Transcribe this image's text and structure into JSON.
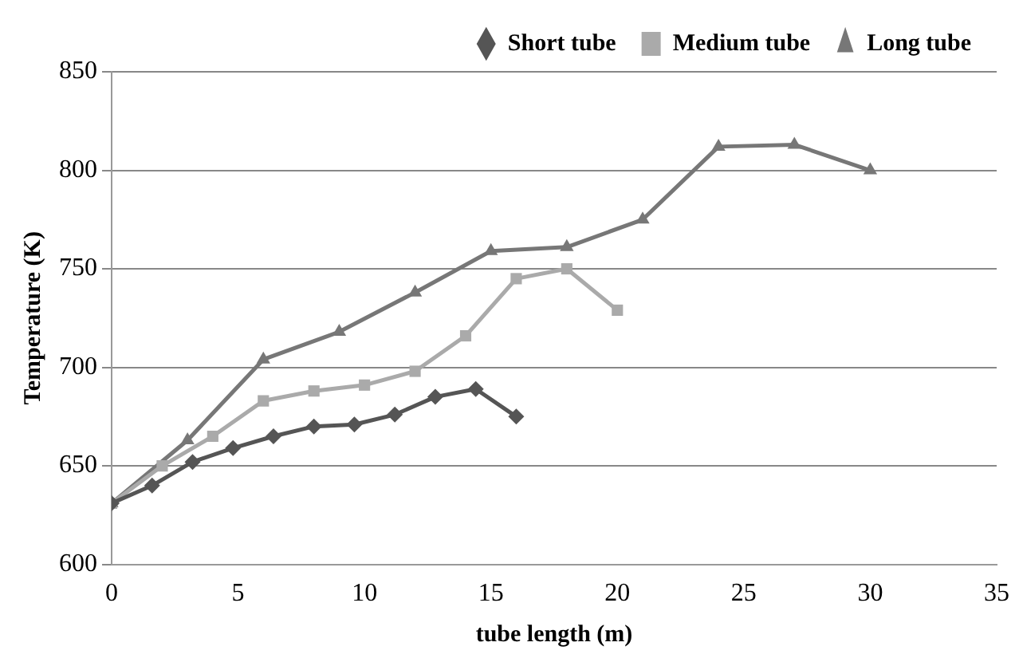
{
  "chart_data": {
    "type": "line",
    "xlabel": "tube length (m)",
    "ylabel": "Temperature (K)",
    "xlim": [
      0,
      35
    ],
    "xticks": [
      0,
      5,
      10,
      15,
      20,
      25,
      30,
      35
    ],
    "ylim": [
      600,
      850
    ],
    "yticks": [
      600,
      650,
      700,
      750,
      800,
      850
    ],
    "grid": "y",
    "legend": "top right",
    "line_style": "solid",
    "series": [
      {
        "name": "Short tube",
        "color": "#555555",
        "marker": "diamond",
        "x": [
          0,
          1.6,
          3.2,
          4.8,
          6.4,
          8,
          9.6,
          11.2,
          12.8,
          14.4,
          16
        ],
        "values": [
          631,
          640,
          652,
          659,
          665,
          670,
          671,
          676,
          685,
          689,
          675
        ]
      },
      {
        "name": "Medium tube",
        "color": "#aaaaaa",
        "marker": "square",
        "x": [
          0,
          2,
          4,
          6,
          8,
          10,
          12,
          14,
          16,
          18,
          20
        ],
        "values": [
          631,
          650,
          665,
          683,
          688,
          691,
          698,
          716,
          745,
          750,
          729
        ]
      },
      {
        "name": "Long tube",
        "color": "#777777",
        "marker": "triangle",
        "x": [
          0,
          3,
          6,
          9,
          12,
          15,
          18,
          21,
          24,
          27,
          30
        ],
        "values": [
          631,
          663,
          704,
          718,
          738,
          759,
          761,
          775,
          812,
          813,
          800
        ]
      }
    ]
  }
}
